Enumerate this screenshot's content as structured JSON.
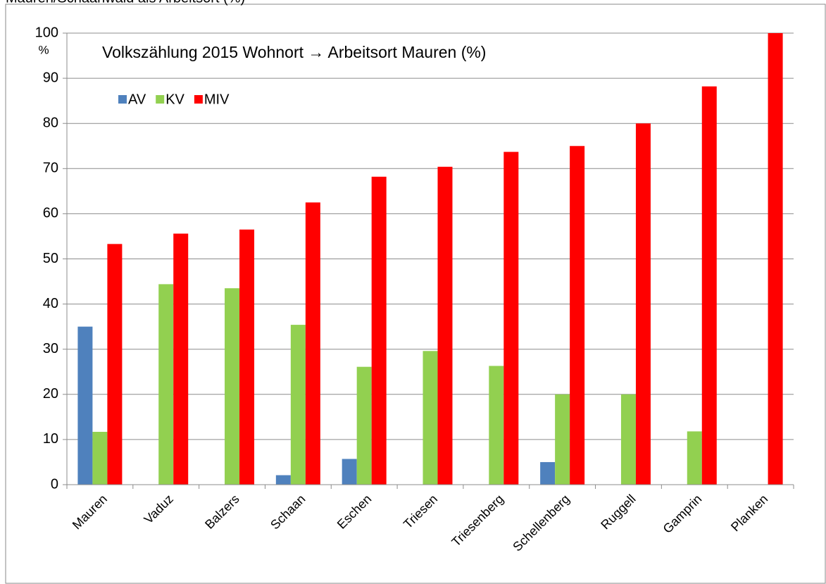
{
  "chart_data": {
    "type": "bar",
    "header": "Mauren/Schaanwald als Arbeitsort (%)",
    "title": "Volkszählung 2015  Wohnort → Arbeitsort Mauren (%)",
    "y_unit": "%",
    "categories": [
      "Mauren",
      "Vaduz",
      "Balzers",
      "Schaan",
      "Eschen",
      "Triesen",
      "Triesenberg",
      "Schellenberg",
      "Ruggell",
      "Gamprin",
      "Planken"
    ],
    "series": [
      {
        "name": "AV",
        "color": "#4f81bd",
        "values": [
          35,
          0,
          0,
          2.1,
          5.7,
          0,
          0,
          5,
          0,
          0,
          0
        ]
      },
      {
        "name": "KV",
        "color": "#92d050",
        "values": [
          11.7,
          44.4,
          43.5,
          35.4,
          26.1,
          29.6,
          26.3,
          20,
          20,
          11.8,
          0
        ]
      },
      {
        "name": "MIV",
        "color": "#ff0000",
        "values": [
          53.3,
          55.6,
          56.5,
          62.5,
          68.2,
          70.4,
          73.7,
          75,
          80,
          88.2,
          100
        ]
      }
    ],
    "ylim": [
      0,
      100
    ],
    "yticks": [
      0,
      10,
      20,
      30,
      40,
      50,
      60,
      70,
      80,
      90,
      100
    ],
    "grid": true,
    "legend": "top-left"
  }
}
